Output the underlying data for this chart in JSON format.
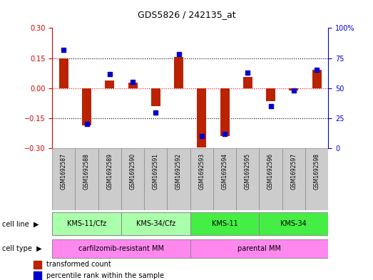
{
  "title": "GDS5826 / 242135_at",
  "samples": [
    "GSM1692587",
    "GSM1692588",
    "GSM1692589",
    "GSM1692590",
    "GSM1692591",
    "GSM1692592",
    "GSM1692593",
    "GSM1692594",
    "GSM1692595",
    "GSM1692596",
    "GSM1692597",
    "GSM1692598"
  ],
  "transformed_count": [
    0.148,
    -0.185,
    0.038,
    0.028,
    -0.09,
    0.155,
    -0.295,
    -0.24,
    0.055,
    -0.065,
    -0.01,
    0.09
  ],
  "percentile_rank": [
    82,
    20,
    62,
    55,
    30,
    78,
    10,
    12,
    63,
    35,
    48,
    65
  ],
  "cell_line_groups": [
    {
      "label": "KMS-11/Cfz",
      "start": 0,
      "end": 2,
      "cfz": true
    },
    {
      "label": "KMS-34/Cfz",
      "start": 3,
      "end": 5,
      "cfz": true
    },
    {
      "label": "KMS-11",
      "start": 6,
      "end": 8,
      "cfz": false
    },
    {
      "label": "KMS-34",
      "start": 9,
      "end": 11,
      "cfz": false
    }
  ],
  "cell_type_groups": [
    {
      "label": "carfilzomib-resistant MM",
      "start": 0,
      "end": 5
    },
    {
      "label": "parental MM",
      "start": 6,
      "end": 11
    }
  ],
  "bar_color": "#BB2200",
  "dot_color": "#0000CC",
  "ylim_left": [
    -0.3,
    0.3
  ],
  "ylim_right": [
    0,
    100
  ],
  "yticks_left": [
    -0.3,
    -0.15,
    0,
    0.15,
    0.3
  ],
  "yticks_right": [
    0,
    25,
    50,
    75,
    100
  ],
  "right_tick_labels": [
    "0",
    "25",
    "50",
    "75",
    "100%"
  ],
  "hline_positions": [
    -0.15,
    0.0,
    0.15
  ],
  "sample_bg": "#CCCCCC",
  "cell_line_cfz_color": "#AAFFAA",
  "cell_line_color": "#44EE44",
  "cell_type_color": "#FF88EE",
  "left_axis_color": "#CC0000",
  "right_axis_color": "#0000CC"
}
